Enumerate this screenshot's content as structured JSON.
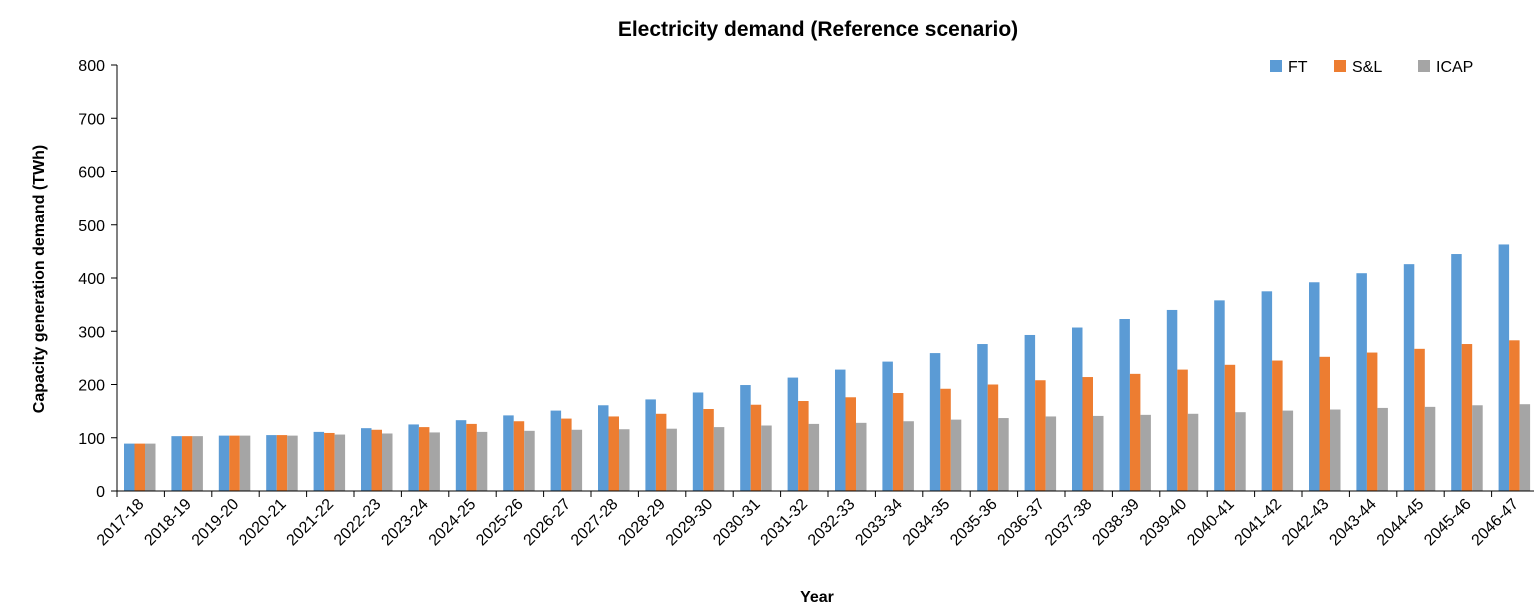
{
  "chart_data": {
    "type": "bar",
    "title": "Electricity demand (Reference scenario)",
    "xlabel": "Year",
    "ylabel": "Capacity generation demand (TWh)",
    "ylim": [
      0,
      800
    ],
    "yticks": [
      0,
      100,
      200,
      300,
      400,
      500,
      600,
      700,
      800
    ],
    "grid": false,
    "legend_position": "top-right",
    "categories": [
      "2017-18",
      "2018-19",
      "2019-20",
      "2020-21",
      "2021-22",
      "2022-23",
      "2023-24",
      "2024-25",
      "2025-26",
      "2026-27",
      "2027-28",
      "2028-29",
      "2029-30",
      "2030-31",
      "2031-32",
      "2032-33",
      "2033-34",
      "2034-35",
      "2035-36",
      "2036-37",
      "2037-38",
      "2038-39",
      "2039-40",
      "2040-41",
      "2041-42",
      "2042-43",
      "2043-44",
      "2044-45",
      "2045-46",
      "2046-47"
    ],
    "series": [
      {
        "name": "FT",
        "color": "#5B9BD5",
        "values": [
          89,
          103,
          104,
          105,
          111,
          118,
          125,
          133,
          142,
          151,
          161,
          172,
          185,
          199,
          213,
          228,
          243,
          259,
          276,
          293,
          307,
          323,
          340,
          358,
          375,
          392,
          409,
          426,
          445,
          463
        ]
      },
      {
        "name": "S&L",
        "color": "#ED7D31",
        "values": [
          89,
          103,
          104,
          105,
          109,
          115,
          120,
          126,
          131,
          136,
          140,
          145,
          154,
          162,
          169,
          176,
          184,
          192,
          200,
          208,
          214,
          220,
          228,
          237,
          245,
          252,
          260,
          267,
          276,
          283
        ]
      },
      {
        "name": "ICAP",
        "color": "#A5A5A5",
        "values": [
          89,
          103,
          104,
          104,
          106,
          108,
          110,
          111,
          113,
          115,
          116,
          117,
          120,
          123,
          126,
          128,
          131,
          134,
          137,
          140,
          141,
          143,
          145,
          148,
          151,
          153,
          156,
          158,
          161,
          163
        ]
      }
    ]
  }
}
